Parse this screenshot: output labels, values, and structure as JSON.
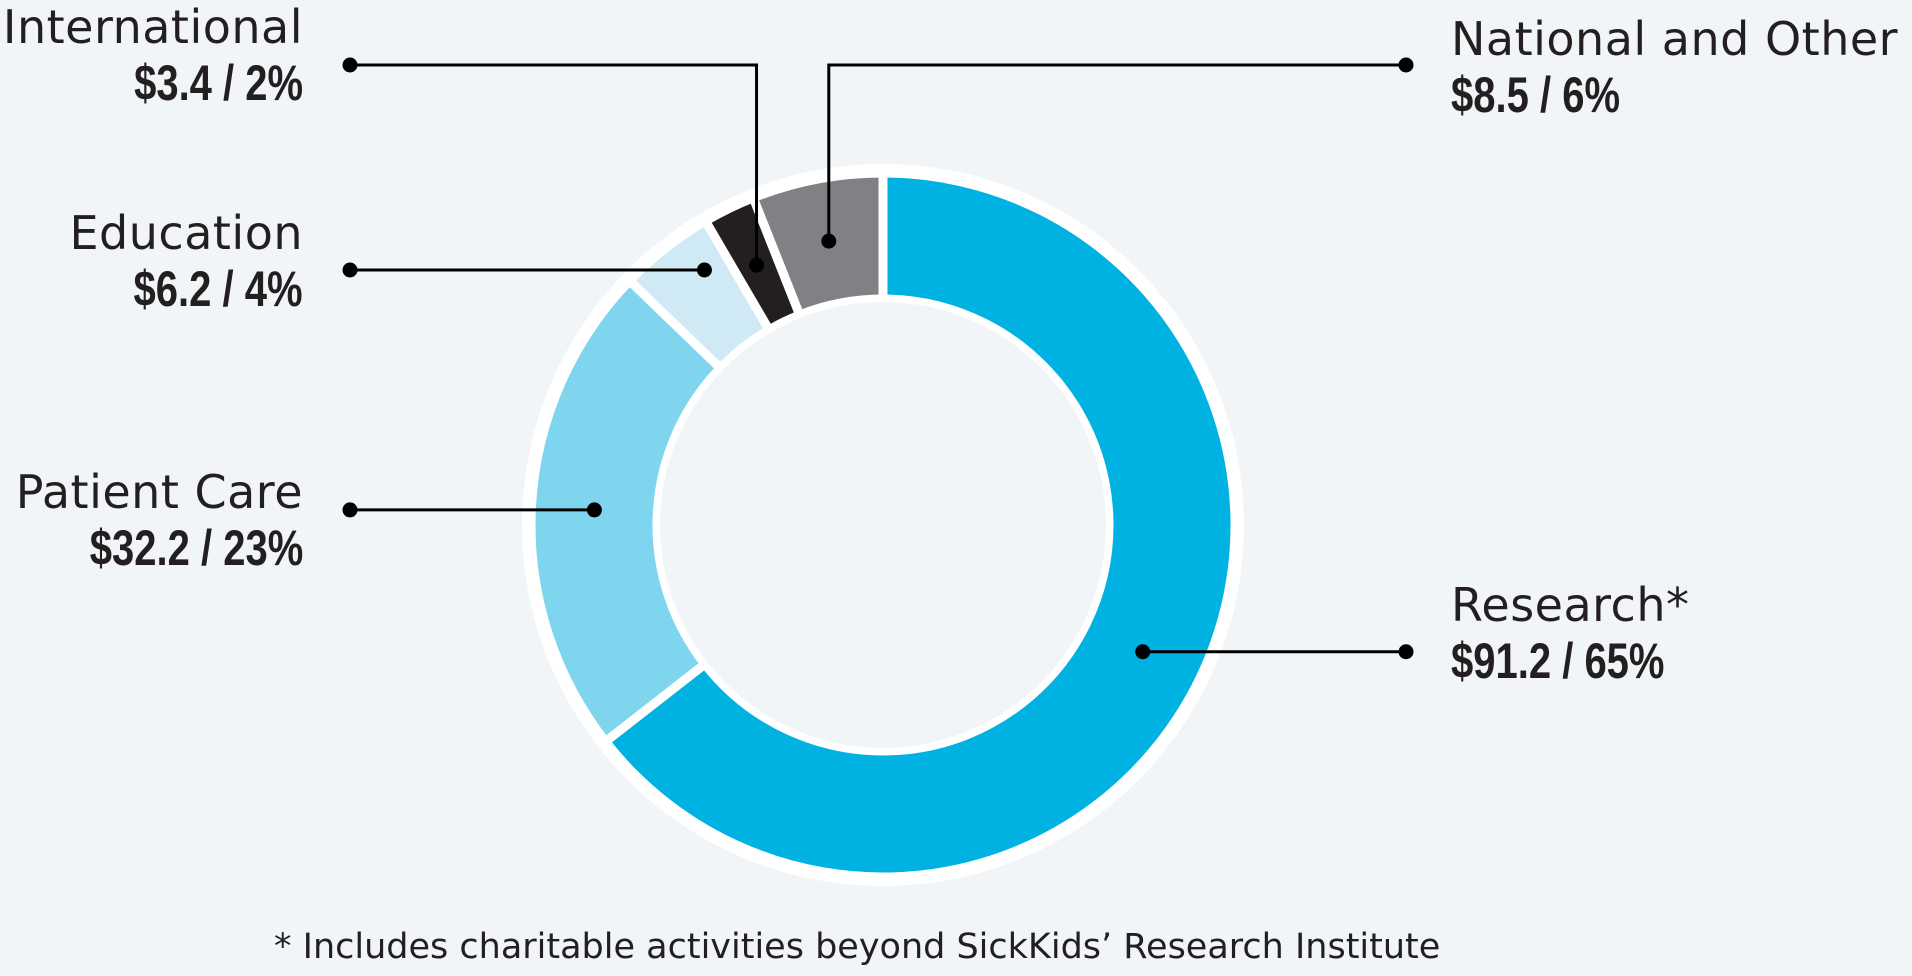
{
  "chart_data": {
    "type": "pie",
    "donut": true,
    "slices": [
      {
        "name": "Research*",
        "value": 91.2,
        "percent_label": "$91.2 / 65%",
        "color": "#00b2e2"
      },
      {
        "name": "Patient Care",
        "value": 32.2,
        "percent_label": "$32.2 / 23%",
        "color": "#7fd4ee"
      },
      {
        "name": "Education",
        "value": 6.2,
        "percent_label": "$6.2 / 4%",
        "color": "#cfe9f5"
      },
      {
        "name": "International",
        "value": 3.4,
        "percent_label": "$3.4 / 2%",
        "color": "#231f20"
      },
      {
        "name": "National and Other",
        "value": 8.5,
        "percent_label": "$8.5 / 6%",
        "color": "#808184"
      }
    ],
    "footnote": "* Includes charitable activities beyond SickKids’ Research Institute",
    "legend": "callout labels"
  },
  "colors": {
    "background": "#f1f5f8",
    "text": "#231f20",
    "leader": "#000000",
    "separator": "#ffffff"
  }
}
